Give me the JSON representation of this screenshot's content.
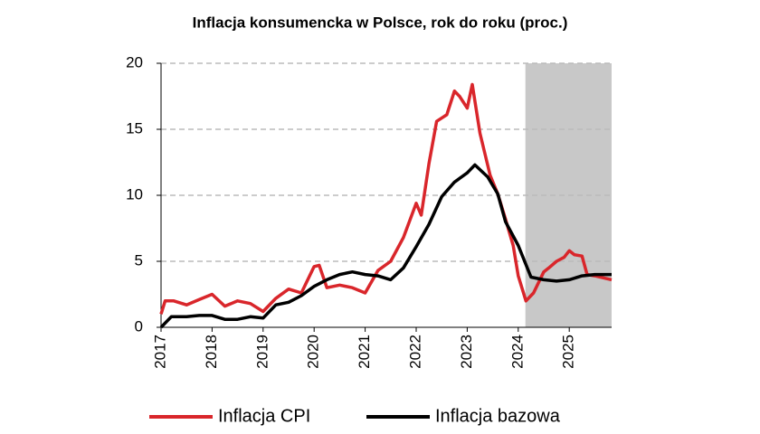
{
  "chart_data": {
    "type": "line",
    "title": "Inflacja konsumencka w Polsce, rok do roku (proc.)",
    "xlim": [
      2017,
      2025.83
    ],
    "xticks": [
      2017,
      2018,
      2019,
      2020,
      2021,
      2022,
      2023,
      2024,
      2025
    ],
    "ylim": [
      0,
      20
    ],
    "yticks": [
      0,
      5,
      10,
      15,
      20
    ],
    "grid": true,
    "shaded_xrange": [
      2024.14,
      2025.83
    ],
    "shade_color": "#c8c8c8",
    "legend": "bottom",
    "series": [
      {
        "name": "Inflacja CPI",
        "color": "#d9262b",
        "x": [
          2017.0,
          2017.08,
          2017.25,
          2017.5,
          2017.75,
          2018.0,
          2018.25,
          2018.5,
          2018.75,
          2019.0,
          2019.25,
          2019.5,
          2019.75,
          2020.0,
          2020.1,
          2020.25,
          2020.5,
          2020.75,
          2021.0,
          2021.25,
          2021.5,
          2021.75,
          2022.0,
          2022.1,
          2022.25,
          2022.4,
          2022.6,
          2022.75,
          2022.85,
          2023.0,
          2023.1,
          2023.25,
          2023.45,
          2023.6,
          2023.75,
          2023.9,
          2024.0,
          2024.15,
          2024.3,
          2024.5,
          2024.6,
          2024.75,
          2024.9,
          2025.0,
          2025.1,
          2025.25,
          2025.35,
          2025.5,
          2025.83
        ],
        "values": [
          1.0,
          2.0,
          2.0,
          1.7,
          2.1,
          2.5,
          1.6,
          2.0,
          1.8,
          1.2,
          2.2,
          2.9,
          2.6,
          4.6,
          4.7,
          3.0,
          3.2,
          3.0,
          2.6,
          4.3,
          5.0,
          6.8,
          9.4,
          8.5,
          12.4,
          15.6,
          16.1,
          17.9,
          17.5,
          16.6,
          18.4,
          14.7,
          11.5,
          10.1,
          8.2,
          6.2,
          3.9,
          2.0,
          2.6,
          4.2,
          4.5,
          5.0,
          5.3,
          5.8,
          5.5,
          5.4,
          4.0,
          3.9,
          3.6
        ]
      },
      {
        "name": "Inflacja bazowa",
        "color": "#000000",
        "x": [
          2017.0,
          2017.2,
          2017.5,
          2017.75,
          2018.0,
          2018.25,
          2018.5,
          2018.75,
          2019.0,
          2019.25,
          2019.5,
          2019.75,
          2020.0,
          2020.25,
          2020.5,
          2020.75,
          2021.0,
          2021.25,
          2021.5,
          2021.75,
          2022.0,
          2022.25,
          2022.5,
          2022.75,
          2023.0,
          2023.15,
          2023.4,
          2023.6,
          2023.75,
          2024.0,
          2024.25,
          2024.5,
          2024.75,
          2025.0,
          2025.25,
          2025.5,
          2025.83
        ],
        "values": [
          0.0,
          0.8,
          0.8,
          0.9,
          0.9,
          0.6,
          0.6,
          0.8,
          0.7,
          1.7,
          1.9,
          2.4,
          3.1,
          3.6,
          4.0,
          4.2,
          4.0,
          3.9,
          3.6,
          4.5,
          6.1,
          7.8,
          9.9,
          11.0,
          11.7,
          12.3,
          11.4,
          10.1,
          8.0,
          6.2,
          3.8,
          3.6,
          3.5,
          3.6,
          3.9,
          4.0,
          4.0
        ]
      }
    ]
  }
}
